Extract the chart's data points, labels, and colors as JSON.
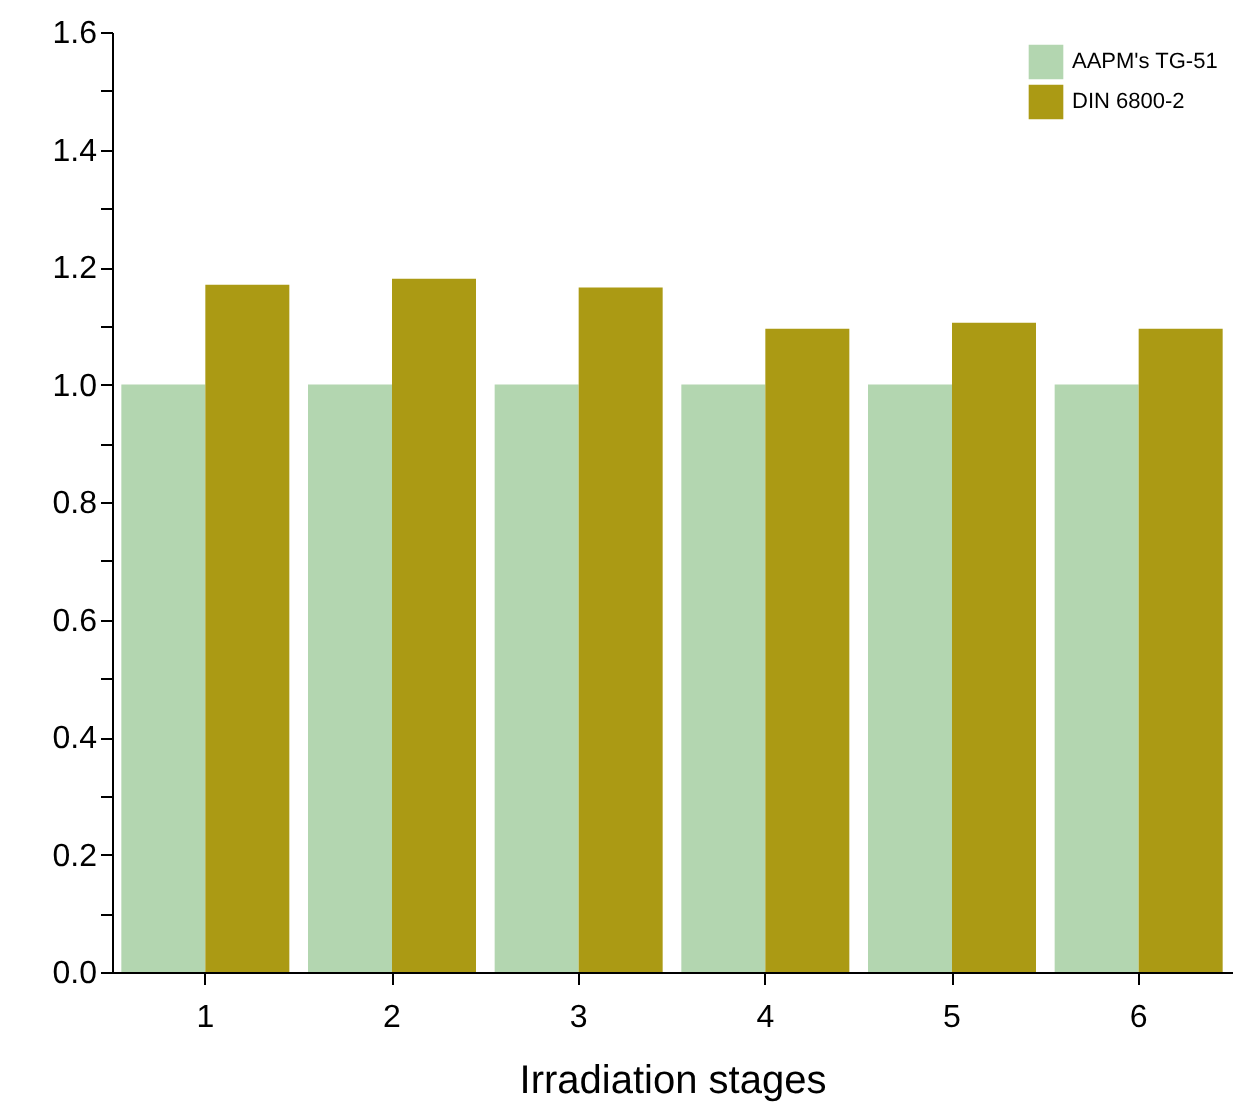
{
  "chart_data": {
    "type": "bar",
    "xlabel": "Irradiation stages",
    "categories": [
      "1",
      "2",
      "3",
      "4",
      "5",
      "6"
    ],
    "series": [
      {
        "name": "AAPM's TG-51",
        "color": "#b3d6b0",
        "values": [
          1.0,
          1.0,
          1.0,
          1.0,
          1.0,
          1.0
        ]
      },
      {
        "name": "DIN 6800-2",
        "color": "#ab9a14",
        "values": [
          1.17,
          1.18,
          1.165,
          1.095,
          1.105,
          1.095
        ]
      }
    ],
    "ylim": [
      0,
      1.6
    ],
    "yticks": [
      {
        "value": 0,
        "label": "0.0"
      },
      {
        "value": 0.1,
        "label": null
      },
      0.2,
      {
        "value": 0.3,
        "label": null
      },
      0.4,
      {
        "value": 0.5,
        "label": null
      },
      0.6,
      {
        "value": 0.7,
        "label": null
      },
      0.8,
      {
        "value": 0.9,
        "label": null
      },
      {
        "value": 1,
        "label": "1.0"
      },
      {
        "value": 1.1,
        "label": null
      },
      1.2,
      {
        "value": 1.3,
        "label": null
      },
      1.4,
      {
        "value": 1.5,
        "label": null
      },
      1.6
    ],
    "grid": false,
    "legend": "top right"
  }
}
